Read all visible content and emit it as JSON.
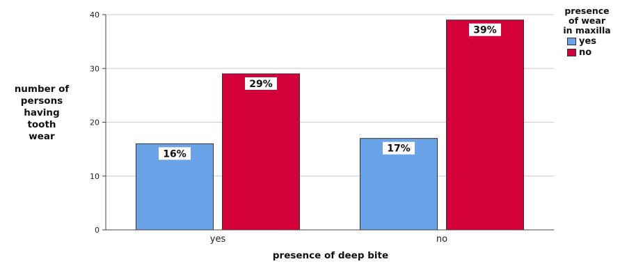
{
  "chart_data": {
    "type": "bar",
    "categories": [
      "yes",
      "no"
    ],
    "series": [
      {
        "name": "yes",
        "values": [
          16,
          17
        ],
        "labels": [
          "16%",
          "17%"
        ],
        "color": "#6aa3e8"
      },
      {
        "name": "no",
        "values": [
          29,
          39
        ],
        "labels": [
          "29%",
          "39%"
        ],
        "color": "#d4003a"
      }
    ],
    "xlabel": "presence of deep bite",
    "ylabel": "number of\npersons\nhaving\ntooth\nwear",
    "ylim": [
      0,
      40
    ],
    "yticks": [
      0,
      10,
      20,
      30,
      40
    ],
    "grid": true,
    "legend": {
      "title": "presence\nof wear\nin maxilla",
      "placement": "top-right"
    }
  }
}
